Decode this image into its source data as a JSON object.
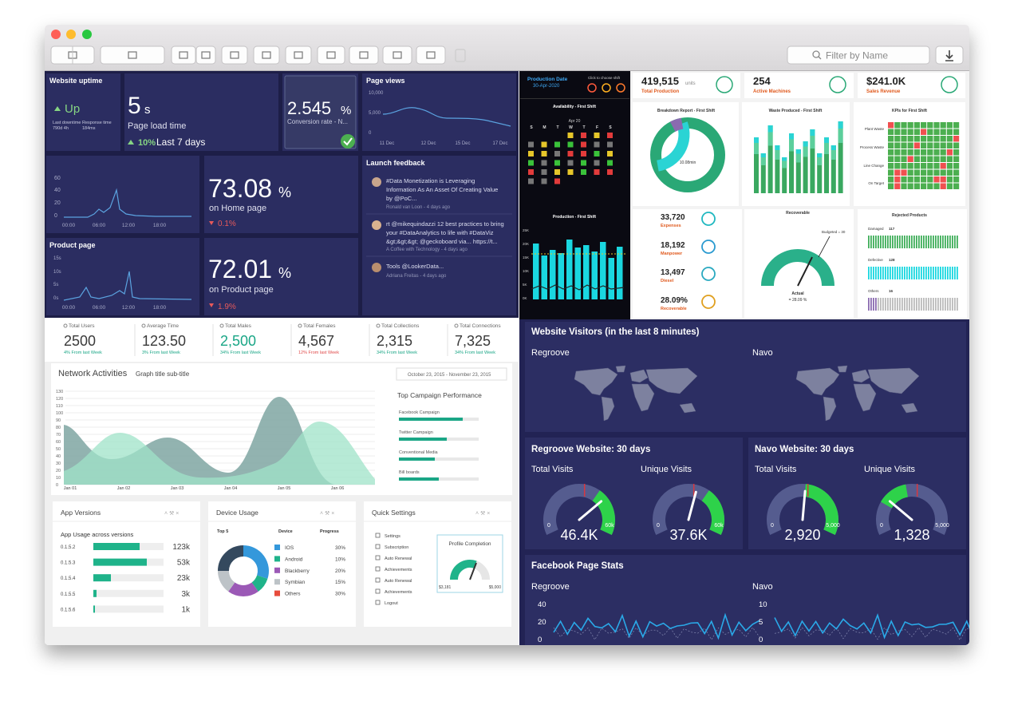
{
  "toolbar": {
    "search_placeholder": "Filter by Name"
  },
  "uptime_dashboard": {
    "uptime": {
      "title": "Website uptime",
      "status": "Up",
      "downtime_label": "Last downtime",
      "downtime": "790d 4h",
      "response_label": "Response time",
      "response": "184ms"
    },
    "load_time": {
      "value": "5",
      "unit": "s",
      "label": "Page load time",
      "change": "10%",
      "period": "Last 7 days"
    },
    "conversion": {
      "value": "2.545",
      "unit": "%",
      "label": "Conversion rate - N..."
    },
    "page_views": {
      "title": "Page views",
      "yticks": [
        "10,000",
        "5,000",
        "0"
      ],
      "xticks": [
        "11 Dec",
        "12 Dec",
        "15 Dec",
        "17 Dec"
      ]
    },
    "traffic": {
      "yticks": [
        "60",
        "40",
        "20",
        "0"
      ],
      "xticks": [
        "00:00",
        "06:00",
        "12:00",
        "18:00"
      ]
    },
    "home_page": {
      "value": "73.08",
      "unit": "%",
      "label": "on Home page",
      "change": "0.1%"
    },
    "product_chart": {
      "title": "Product page",
      "yticks": [
        "15s",
        "10s",
        "5s",
        "0s"
      ],
      "xticks": [
        "00:00",
        "06:00",
        "12:00",
        "18:00"
      ]
    },
    "product_page": {
      "value": "72.01",
      "unit": "%",
      "label": "on Product page",
      "change": "1.9%"
    },
    "feedback": {
      "title": "Launch feedback",
      "items": [
        {
          "lines": [
            "#Data Monetization is Leveraging",
            "Information As An Asset Of Creating Value",
            "by @PoC..."
          ],
          "meta": "Ronald van Loon - 4 days ago"
        },
        {
          "lines": [
            "rt @mikequindazzi 12 best practices to bring",
            "your #DataAnalytics to life with #DataViz",
            "&gt;&gt;&gt; @geckoboard via... https://t..."
          ],
          "meta": "A Coffee with Technology - 4 days ago"
        },
        {
          "lines": [
            "Tools @LookerData..."
          ],
          "meta": "Adriana Freitas - 4 days ago"
        }
      ]
    }
  },
  "production_dashboard": {
    "header": {
      "title": "Production Date",
      "date": "30-Apr-2020",
      "shift_hint": "Click to choose shift"
    },
    "availability": {
      "title": "Availability - First Shift",
      "month": "Apr 20",
      "weekdays": [
        "S",
        "M",
        "T",
        "W",
        "T",
        "F",
        "S"
      ]
    },
    "production": {
      "title": "Production - First Shift",
      "yticks": [
        "25K",
        "20K",
        "15K",
        "10K",
        "5K",
        "0K"
      ]
    },
    "cards": [
      {
        "value": "419,515",
        "unit": "units",
        "label": "Total Production"
      },
      {
        "value": "254",
        "label": "Active Machines"
      },
      {
        "value": "$241.0K",
        "label": "Sales Revenue"
      }
    ],
    "breakdown": {
      "title": "Breakdown Report - First Shift",
      "center": "10.08min"
    },
    "waste": {
      "title": "Waste Produced - First Shift"
    },
    "kpis": {
      "title": "KPIs for First Shift",
      "rows": [
        "Plant Waste",
        "Process Waste",
        "Line Change",
        "On Target"
      ]
    },
    "stats": [
      {
        "value": "33,720",
        "label": "Expenses"
      },
      {
        "value": "18,192",
        "label": "Manpower"
      },
      {
        "value": "13,497",
        "label": "Diesel"
      },
      {
        "value": "28.09%",
        "label": "Recoverable"
      }
    ],
    "recoverable": {
      "title": "Recoverable",
      "budget": "Budgeted = 30",
      "actual_label": "Actual",
      "actual": "= 28.09 %"
    },
    "rejected": {
      "title": "Rejected Products",
      "rows": [
        {
          "label": "Damaged",
          "value": "117"
        },
        {
          "label": "Defective",
          "value": "128"
        },
        {
          "label": "Others",
          "value": "16"
        }
      ]
    }
  },
  "network_dashboard": {
    "kpis": [
      {
        "label": "Total Users",
        "value": "2500",
        "change": "4% From last Week"
      },
      {
        "label": "Average Time",
        "value": "123.50",
        "change": "3% From last Week"
      },
      {
        "label": "Total Males",
        "value": "2,500",
        "change": "34% From last Week"
      },
      {
        "label": "Total Females",
        "value": "4,567",
        "change": "12% From last Week"
      },
      {
        "label": "Total Collections",
        "value": "2,315",
        "change": "34% From last Week"
      },
      {
        "label": "Total Connections",
        "value": "7,325",
        "change": "34% From last Week"
      }
    ],
    "network": {
      "title": "Network Activities",
      "subtitle": "Graph title sub-title",
      "date_range": "October 23, 2015 - November 23, 2015",
      "yticks": [
        "130",
        "120",
        "110",
        "100",
        "90",
        "80",
        "70",
        "60",
        "50",
        "40",
        "30",
        "20",
        "10",
        "0"
      ],
      "xticks": [
        "Jan 01",
        "Jan 02",
        "Jan 03",
        "Jan 04",
        "Jan 05",
        "Jan 06"
      ],
      "campaign_title": "Top Campaign Performance",
      "campaigns": [
        "Facebook Campaign",
        "Twitter Campaign",
        "Conventional Media",
        "Bill boards"
      ]
    },
    "app_versions": {
      "title": "App Versions",
      "subtitle": "App Usage across versions",
      "rows": [
        {
          "version": "0.1.5.2",
          "value": "123k"
        },
        {
          "version": "0.1.5.3",
          "value": "53k"
        },
        {
          "version": "0.1.5.4",
          "value": "23k"
        },
        {
          "version": "0.1.5.5",
          "value": "3k"
        },
        {
          "version": "0.1.5.6",
          "value": "1k"
        }
      ]
    },
    "device_usage": {
      "title": "Device Usage",
      "headers": [
        "Top 5",
        "Device",
        "Progress"
      ],
      "rows": [
        {
          "device": "IOS",
          "value": "30%"
        },
        {
          "device": "Android",
          "value": "10%"
        },
        {
          "device": "Blackberry",
          "value": "20%"
        },
        {
          "device": "Symbian",
          "value": "15%"
        },
        {
          "device": "Others",
          "value": "30%"
        }
      ]
    },
    "quick_settings": {
      "title": "Quick Settings",
      "items": [
        "Settings",
        "Subscription",
        "Auto Renewal",
        "Achievements",
        "Auto Renewal",
        "Achievements",
        "Logout"
      ],
      "profile": {
        "title": "Profile Completion",
        "min": "$3,181",
        "max": "$5,000"
      }
    }
  },
  "visitors_dashboard": {
    "visitors": {
      "title": "Website Visitors (in the last 8 minutes)",
      "sites": [
        "Regroove",
        "Navo"
      ]
    },
    "sites": [
      {
        "title": "Regroove Website: 30 days",
        "gauges": [
          {
            "label": "Total Visits",
            "min": "0",
            "max": "60k",
            "value": "46.4K"
          },
          {
            "label": "Unique Visits",
            "min": "0",
            "max": "60k",
            "value": "37.6K"
          }
        ]
      },
      {
        "title": "Navo Website: 30 days",
        "gauges": [
          {
            "label": "Total Visits",
            "min": "0",
            "max": "5,000",
            "value": "2,920"
          },
          {
            "label": "Unique Visits",
            "min": "0",
            "max": "5,000",
            "value": "1,328"
          }
        ]
      }
    ],
    "facebook": {
      "title": "Facebook Page Stats",
      "panels": [
        {
          "name": "Regroove",
          "yticks": [
            "40",
            "20",
            "0"
          ]
        },
        {
          "name": "Navo",
          "yticks": [
            "10",
            "5",
            "0"
          ]
        }
      ]
    }
  }
}
